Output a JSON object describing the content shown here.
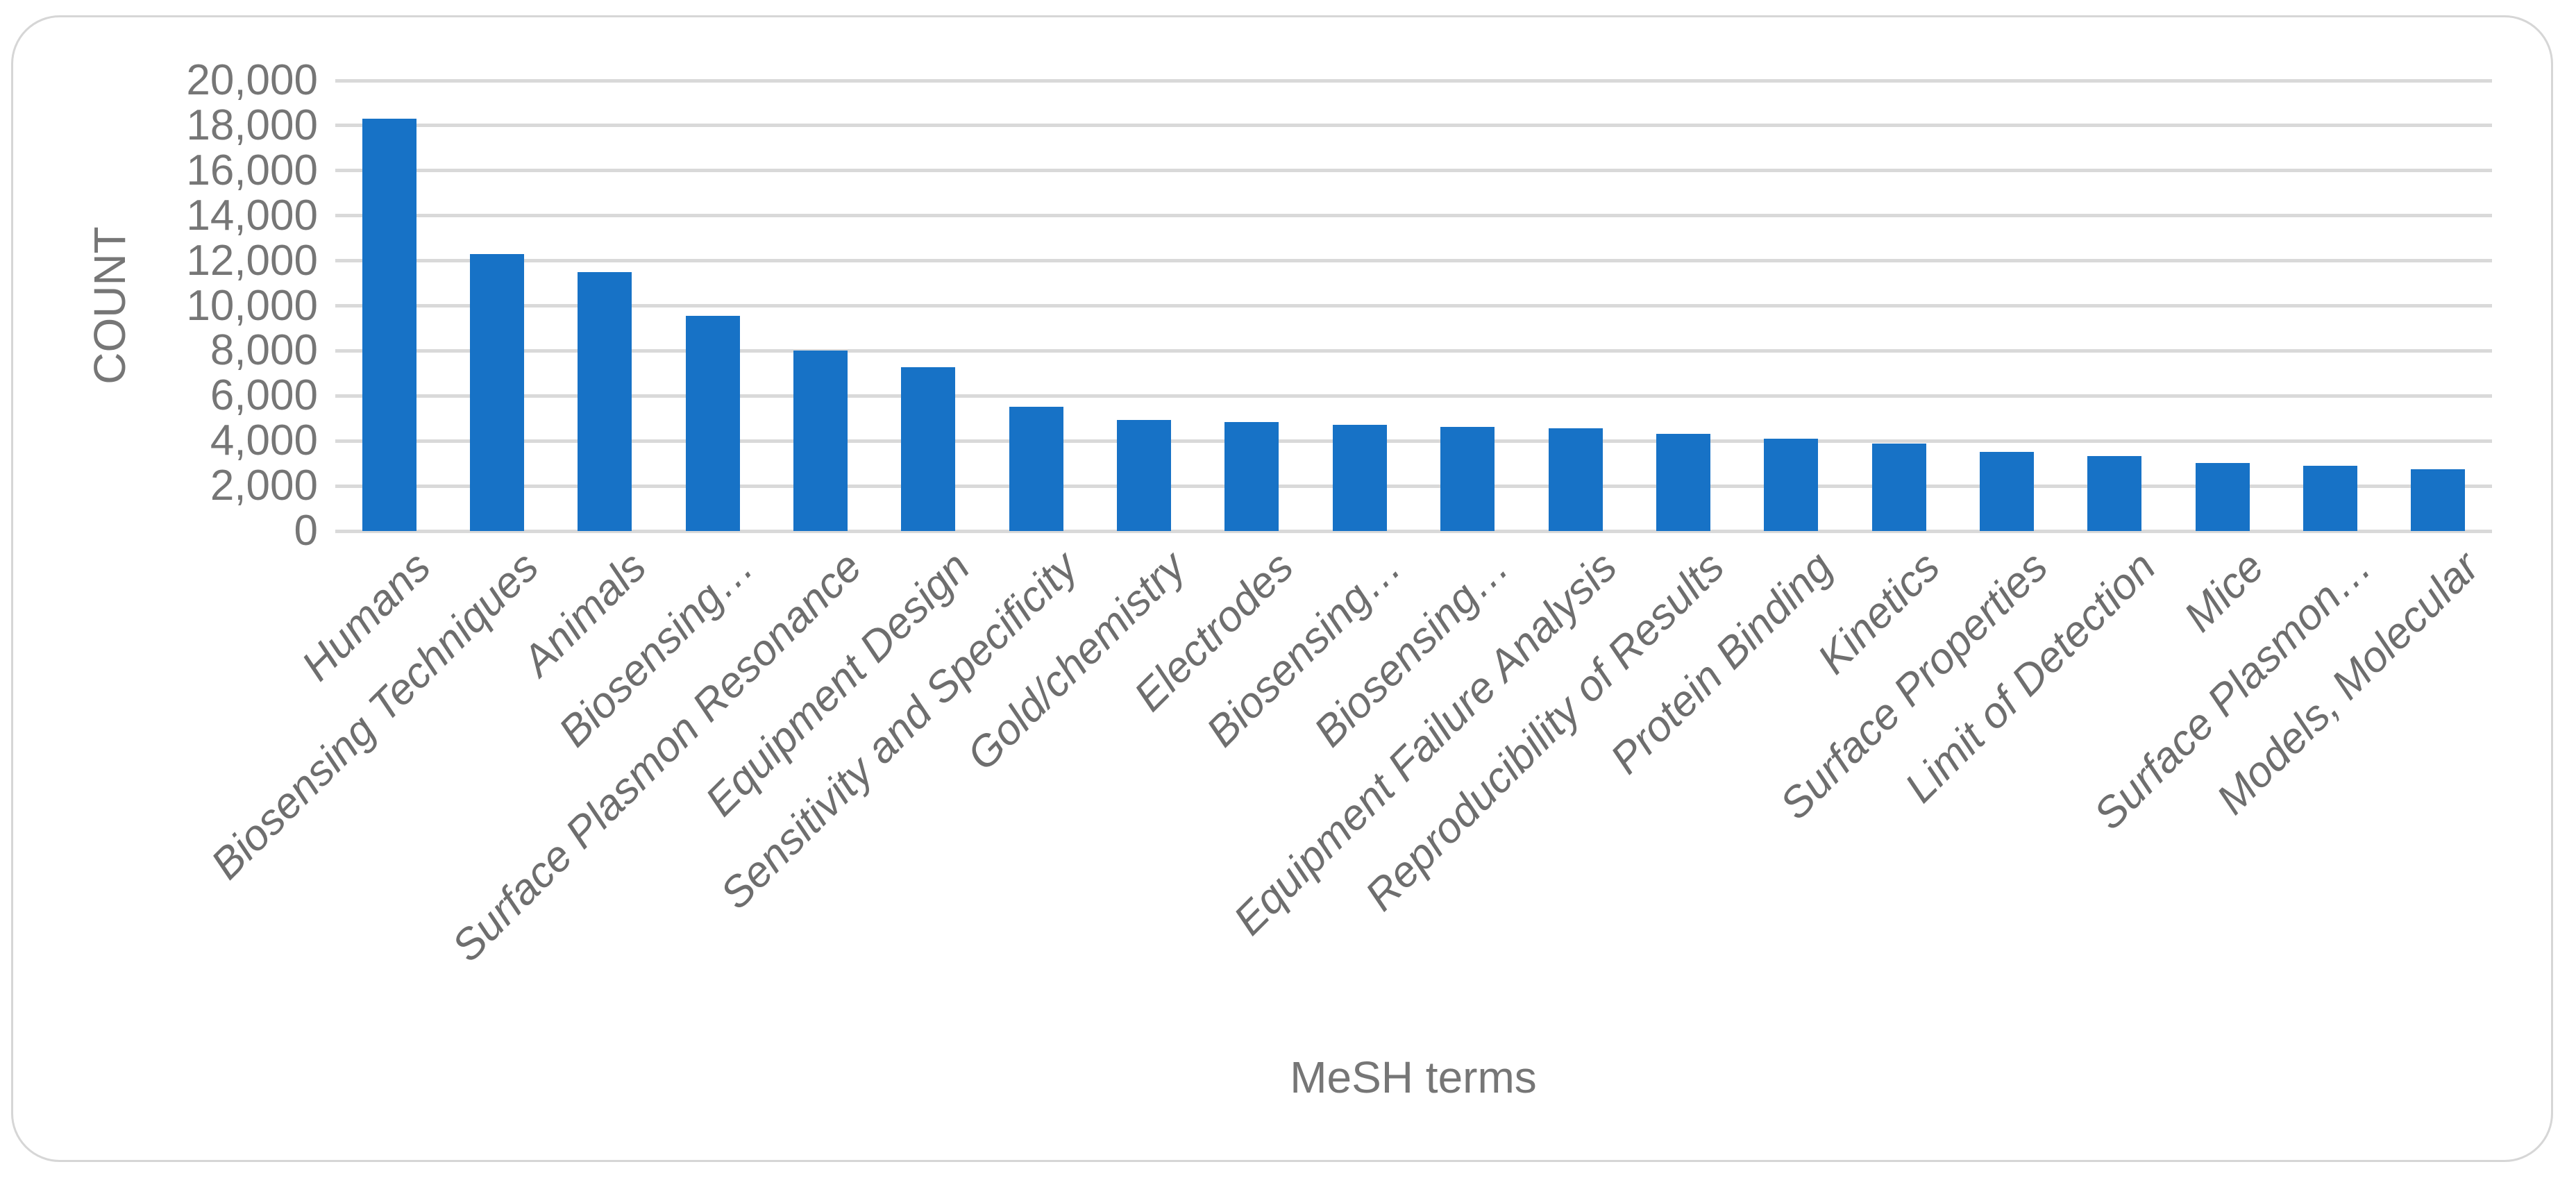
{
  "chart_data": {
    "type": "bar",
    "title": "",
    "xlabel": "MeSH terms",
    "ylabel": "COUNT",
    "ylim": [
      0,
      20000
    ],
    "ytick_step": 2000,
    "ytick_labels": [
      "0",
      "2,000",
      "4,000",
      "6,000",
      "8,000",
      "10,000",
      "12,000",
      "14,000",
      "16,000",
      "18,000",
      "20,000"
    ],
    "grid": "horizontal-only",
    "legend_position": "none",
    "bar_color": "#1772C6",
    "gridline_color": "#D9D9D9",
    "axis_text_color": "#767676",
    "panel_border_color": "#D6D6D6",
    "categories": [
      "Humans",
      "Biosensing Techniques",
      "Animals",
      "Biosensing…",
      "Surface Plasmon Resonance",
      "Equipment Design",
      "Sensitivity and Specificity",
      "Gold/chemistry",
      "Electrodes",
      "Biosensing…",
      "Biosensing…",
      "Equipment Failure Analysis",
      "Reproducibility of Results",
      "Protein Binding",
      "Kinetics",
      "Surface Properties",
      "Limit of Detection",
      "Mice",
      "Surface Plasmon…",
      "Models, Molecular"
    ],
    "values": [
      18300,
      12300,
      11500,
      9560,
      8010,
      7280,
      5510,
      4940,
      4840,
      4700,
      4610,
      4550,
      4320,
      4090,
      3870,
      3520,
      3320,
      3010,
      2890,
      2740
    ]
  }
}
